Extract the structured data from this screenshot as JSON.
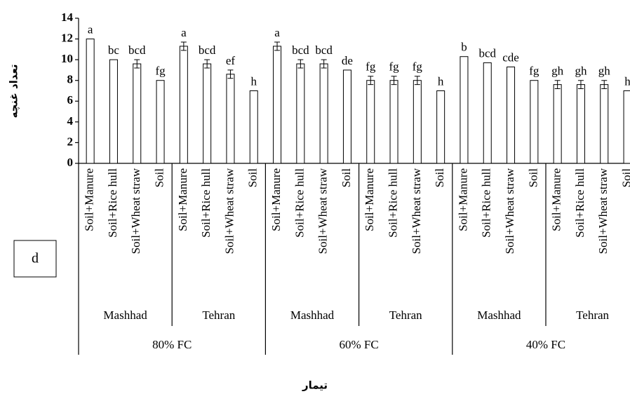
{
  "chart_data": {
    "type": "bar",
    "y_label": "تعداد غنچه",
    "x_label": "تیمار",
    "panel_label": "d",
    "categories": [
      "Soil+Manure",
      "Soil+Rice hull",
      "Soil+Wheat straw",
      "Soil",
      "Soil+Manure",
      "Soil+Rice hull",
      "Soil+Wheat straw",
      "Soil",
      "Soil+Manure",
      "Soil+Rice hull",
      "Soil+Wheat straw",
      "Soil",
      "Soil+Manure",
      "Soil+Rice hull",
      "Soil+Wheat straw",
      "Soil",
      "Soil+Manure",
      "Soil+Rice hull",
      "Soil+Wheat straw",
      "Soil",
      "Soil+Manure",
      "Soil+Rice hull",
      "Soil+Wheat straw",
      "Soil"
    ],
    "values": [
      12,
      10,
      9.6,
      8,
      11.3,
      9.6,
      8.6,
      7,
      11.3,
      9.6,
      9.6,
      9,
      8,
      8,
      8,
      7,
      10.3,
      9.7,
      9.3,
      8,
      7.6,
      7.6,
      7.6,
      7
    ],
    "errors": [
      null,
      null,
      0.4,
      null,
      0.4,
      0.4,
      0.4,
      null,
      0.4,
      0.4,
      0.4,
      null,
      0.4,
      0.4,
      0.4,
      null,
      null,
      null,
      null,
      null,
      0.4,
      0.4,
      0.4,
      null
    ],
    "letters": [
      "a",
      "bc",
      "bcd",
      "fg",
      "a",
      "bcd",
      "ef",
      "h",
      "a",
      "bcd",
      "bcd",
      "de",
      "fg",
      "fg",
      "fg",
      "h",
      "b",
      "bcd",
      "cde",
      "fg",
      "gh",
      "gh",
      "gh",
      "h"
    ],
    "subgroups": [
      "Mashhad",
      "Tehran",
      "Mashhad",
      "Tehran",
      "Mashhad",
      "Tehran"
    ],
    "groups": [
      "80% FC",
      "60% FC",
      "40% FC"
    ],
    "color": "#ffffff",
    "ylim": [
      0,
      14
    ],
    "yticks": [
      0,
      2,
      4,
      6,
      8,
      10,
      12,
      14
    ]
  }
}
